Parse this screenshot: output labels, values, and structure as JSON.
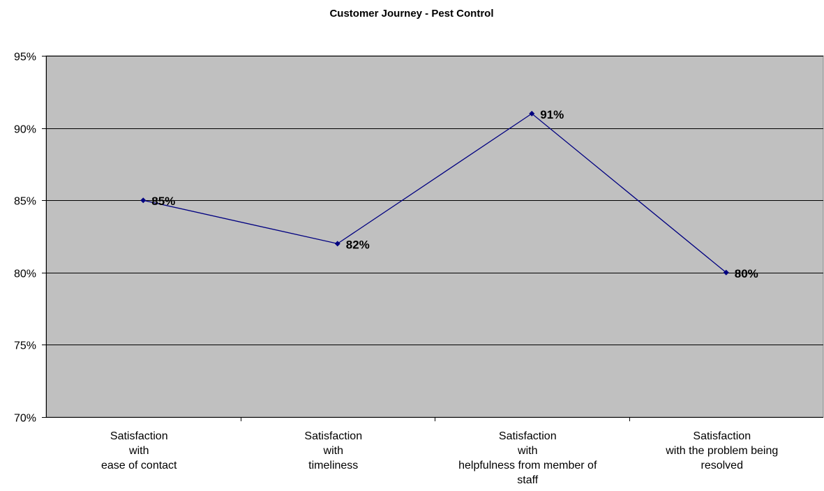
{
  "chart_data": {
    "type": "line",
    "title": "Customer Journey - Pest Control",
    "categories": [
      [
        "Satisfaction",
        "with",
        "ease of contact"
      ],
      [
        "Satisfaction",
        "with",
        "timeliness"
      ],
      [
        "Satisfaction",
        "with",
        "helpfulness from member of",
        "staff"
      ],
      [
        "Satisfaction",
        "with the problem being",
        "resolved"
      ]
    ],
    "series": [
      {
        "values": [
          85,
          82,
          91,
          80
        ],
        "labels": [
          "85%",
          "82%",
          "91%",
          "80%"
        ]
      }
    ],
    "ylim": [
      70,
      95
    ],
    "yticks": [
      70,
      75,
      80,
      85,
      90,
      95
    ],
    "ytick_labels": [
      "70%",
      "75%",
      "80%",
      "85%",
      "90%",
      "95%"
    ],
    "grid": true,
    "legend": "none",
    "colors": {
      "plot_background": "#c0c0c0",
      "line": "#000080",
      "marker": "#000080",
      "grid": "#000000"
    }
  }
}
